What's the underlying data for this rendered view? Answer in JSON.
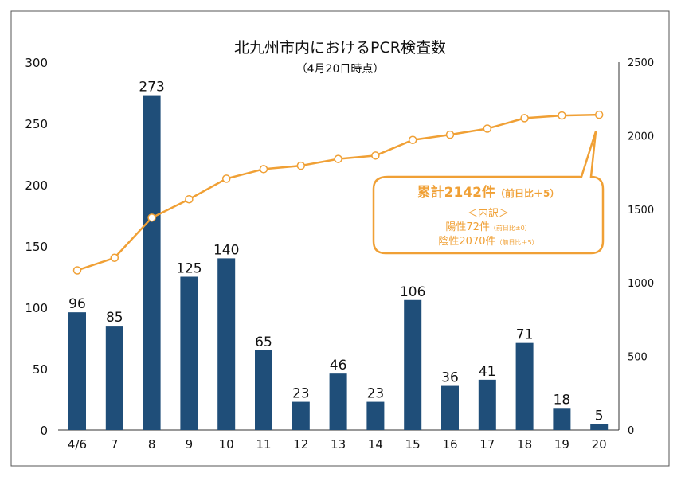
{
  "chart_data": {
    "type": "bar+line",
    "title": "北九州市内におけるPCR検査数",
    "subtitle": "（4月20日時点）",
    "categories": [
      "4/6",
      "7",
      "8",
      "9",
      "10",
      "11",
      "12",
      "13",
      "14",
      "15",
      "16",
      "17",
      "18",
      "19",
      "20"
    ],
    "bar_values": [
      96,
      85,
      273,
      125,
      140,
      65,
      23,
      46,
      23,
      106,
      36,
      41,
      71,
      18,
      5
    ],
    "line_values": [
      1085,
      1170,
      1443,
      1568,
      1708,
      1773,
      1796,
      1842,
      1865,
      1971,
      2007,
      2048,
      2119,
      2137,
      2142
    ],
    "y_left": {
      "range": [
        0,
        300
      ],
      "ticks": [
        0,
        50,
        100,
        150,
        200,
        250,
        300
      ]
    },
    "y_right": {
      "range": [
        0,
        2500
      ],
      "ticks": [
        0,
        500,
        1000,
        1500,
        2000,
        2500
      ]
    },
    "grid": false,
    "colors": {
      "bar": "#1f4e79",
      "line": "#f0a035",
      "marker_fill": "#ffffff"
    },
    "callout": {
      "line1": "累計2142件",
      "line1_note": "（前日比＋5）",
      "line2": "＜内訳＞",
      "line3": "陽性72件",
      "line3_note": "（前日比±0）",
      "line4": "陰性2070件",
      "line4_note": "（前日比＋5）"
    }
  }
}
